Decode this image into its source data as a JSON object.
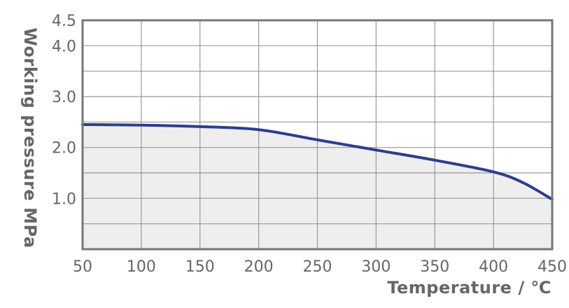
{
  "chart_data": {
    "type": "area",
    "title": "",
    "xlabel": "Temperature / ℃",
    "ylabel": "Working pressure MPa",
    "xlim": [
      50,
      450
    ],
    "ylim": [
      0,
      4.5
    ],
    "x_ticks": [
      "50",
      "100",
      "150",
      "200",
      "250",
      "300",
      "350",
      "400",
      "450"
    ],
    "y_ticks": [
      "1.0",
      "2.0",
      "3.0",
      "4.0",
      "4.5"
    ],
    "x_tick_values": [
      50,
      100,
      150,
      200,
      250,
      300,
      350,
      400,
      450
    ],
    "y_tick_values": [
      1.0,
      2.0,
      3.0,
      4.0,
      4.5
    ],
    "grid": true,
    "series": [
      {
        "x": [
          50,
          100,
          150,
          200,
          250,
          300,
          350,
          400,
          425,
          450
        ],
        "y": [
          2.45,
          2.44,
          2.41,
          2.35,
          2.15,
          1.95,
          1.75,
          1.52,
          1.31,
          0.98
        ]
      }
    ],
    "colors": {
      "line": "#2b3f8c",
      "fill": "#eeeeee",
      "grid": "#999999",
      "frame": "#777777"
    }
  }
}
